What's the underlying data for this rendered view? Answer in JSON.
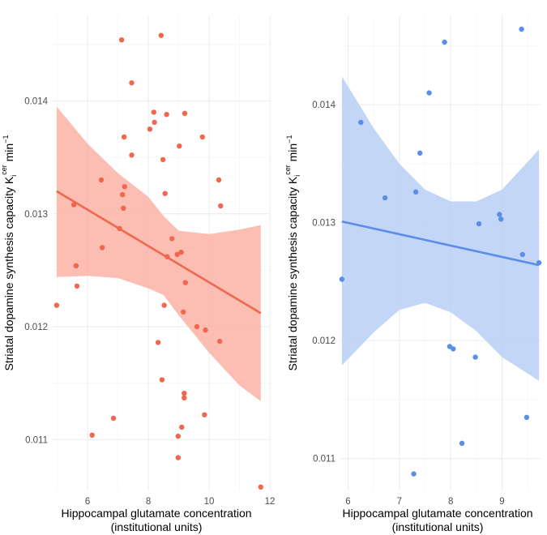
{
  "chart_data": [
    {
      "type": "scatter",
      "panel": "left",
      "xlabel": "Hippocampal glutamate concentration",
      "xlabel_line2": "(institutional units)",
      "ylabel_text": "Striatal dopamine synthesis capacity",
      "ylabel_k": "K",
      "ylabel_sub": "i",
      "ylabel_sup": "cer",
      "ylabel_unit": "min",
      "ylabel_unit_sup": "−1",
      "xlim": [
        4.85,
        12.0
      ],
      "ylim": [
        0.01055,
        0.01475
      ],
      "xticks": [
        6,
        8,
        10,
        12
      ],
      "xtick_labels": [
        "6",
        "8",
        "10",
        "12"
      ],
      "yticks": [
        0.011,
        0.012,
        0.013,
        0.014
      ],
      "ytick_labels": [
        "0.011",
        "0.012",
        "0.013",
        "0.014"
      ],
      "color": "#f0674d",
      "band_color": "#fcb3a4",
      "points": [
        [
          4.98,
          0.01219
        ],
        [
          5.55,
          0.01308
        ],
        [
          5.62,
          0.01254
        ],
        [
          5.65,
          0.01236
        ],
        [
          6.15,
          0.01104
        ],
        [
          6.45,
          0.0133
        ],
        [
          6.48,
          0.0127
        ],
        [
          6.85,
          0.01119
        ],
        [
          7.05,
          0.01287
        ],
        [
          7.12,
          0.01454
        ],
        [
          7.15,
          0.01317
        ],
        [
          7.18,
          0.01305
        ],
        [
          7.2,
          0.01368
        ],
        [
          7.22,
          0.01324
        ],
        [
          7.45,
          0.01416
        ],
        [
          7.45,
          0.01352
        ],
        [
          8.05,
          0.01375
        ],
        [
          8.18,
          0.0139
        ],
        [
          8.2,
          0.01381
        ],
        [
          8.32,
          0.01186
        ],
        [
          8.42,
          0.01458
        ],
        [
          8.45,
          0.01153
        ],
        [
          8.48,
          0.01348
        ],
        [
          8.52,
          0.01219
        ],
        [
          8.55,
          0.01318
        ],
        [
          8.6,
          0.01388
        ],
        [
          8.62,
          0.01262
        ],
        [
          8.78,
          0.01278
        ],
        [
          8.95,
          0.01264
        ],
        [
          8.98,
          0.01103
        ],
        [
          8.98,
          0.01084
        ],
        [
          9.02,
          0.0136
        ],
        [
          9.08,
          0.01266
        ],
        [
          9.1,
          0.01111
        ],
        [
          9.15,
          0.01213
        ],
        [
          9.18,
          0.01141
        ],
        [
          9.18,
          0.01137
        ],
        [
          9.2,
          0.01389
        ],
        [
          9.22,
          0.01239
        ],
        [
          9.6,
          0.012
        ],
        [
          9.78,
          0.01368
        ],
        [
          9.85,
          0.01122
        ],
        [
          9.88,
          0.01197
        ],
        [
          10.32,
          0.0133
        ],
        [
          10.35,
          0.01187
        ],
        [
          10.38,
          0.01307
        ],
        [
          11.7,
          0.01058
        ]
      ],
      "fit": {
        "x": [
          4.98,
          11.7
        ],
        "y": [
          0.0132,
          0.01212
        ]
      },
      "band": {
        "x": [
          4.98,
          6.0,
          7.0,
          8.0,
          8.5,
          9.0,
          10.0,
          11.0,
          11.7
        ],
        "upper": [
          0.01395,
          0.01362,
          0.01336,
          0.01315,
          0.01298,
          0.01285,
          0.01282,
          0.01286,
          0.0129
        ],
        "lower": [
          0.01244,
          0.01245,
          0.01243,
          0.01234,
          0.01228,
          0.0121,
          0.01177,
          0.01148,
          0.01134
        ]
      }
    },
    {
      "type": "scatter",
      "panel": "right",
      "xlabel": "Hippocampal glutamate concentration",
      "xlabel_line2": "(institutional units)",
      "ylabel_text": "Striatal dopamine synthesis capacity",
      "ylabel_k": "K",
      "ylabel_sub": "i",
      "ylabel_sup": "cer",
      "ylabel_unit": "min",
      "ylabel_unit_sup": "−1",
      "xlim": [
        5.85,
        9.75
      ],
      "ylim": [
        0.01073,
        0.01475
      ],
      "xticks": [
        6,
        7,
        8,
        9
      ],
      "xtick_labels": [
        "6",
        "7",
        "8",
        "9"
      ],
      "yticks": [
        0.011,
        0.012,
        0.013,
        0.014
      ],
      "ytick_labels": [
        "0.011",
        "0.012",
        "0.013",
        "0.014"
      ],
      "color": "#5b8ee6",
      "band_color": "#b8cff6",
      "points": [
        [
          5.88,
          0.01252
        ],
        [
          6.25,
          0.01385
        ],
        [
          6.72,
          0.01321
        ],
        [
          7.28,
          0.01087
        ],
        [
          7.32,
          0.01326
        ],
        [
          7.4,
          0.01359
        ],
        [
          7.58,
          0.0141
        ],
        [
          7.88,
          0.01453
        ],
        [
          7.98,
          0.01195
        ],
        [
          8.05,
          0.01193
        ],
        [
          8.22,
          0.01113
        ],
        [
          8.48,
          0.01186
        ],
        [
          8.55,
          0.01299
        ],
        [
          8.95,
          0.01307
        ],
        [
          8.98,
          0.01303
        ],
        [
          9.38,
          0.01464
        ],
        [
          9.4,
          0.01273
        ],
        [
          9.48,
          0.01135
        ],
        [
          9.72,
          0.01266
        ]
      ],
      "fit": {
        "x": [
          5.88,
          9.72
        ],
        "y": [
          0.01301,
          0.01264
        ]
      },
      "band": {
        "x": [
          5.88,
          6.5,
          7.0,
          7.5,
          8.0,
          8.5,
          9.0,
          9.72
        ],
        "upper": [
          0.01424,
          0.0138,
          0.0135,
          0.01328,
          0.01318,
          0.01318,
          0.01328,
          0.01362
        ],
        "lower": [
          0.01179,
          0.01207,
          0.01226,
          0.01232,
          0.01224,
          0.01208,
          0.01186,
          0.01166
        ]
      }
    }
  ]
}
